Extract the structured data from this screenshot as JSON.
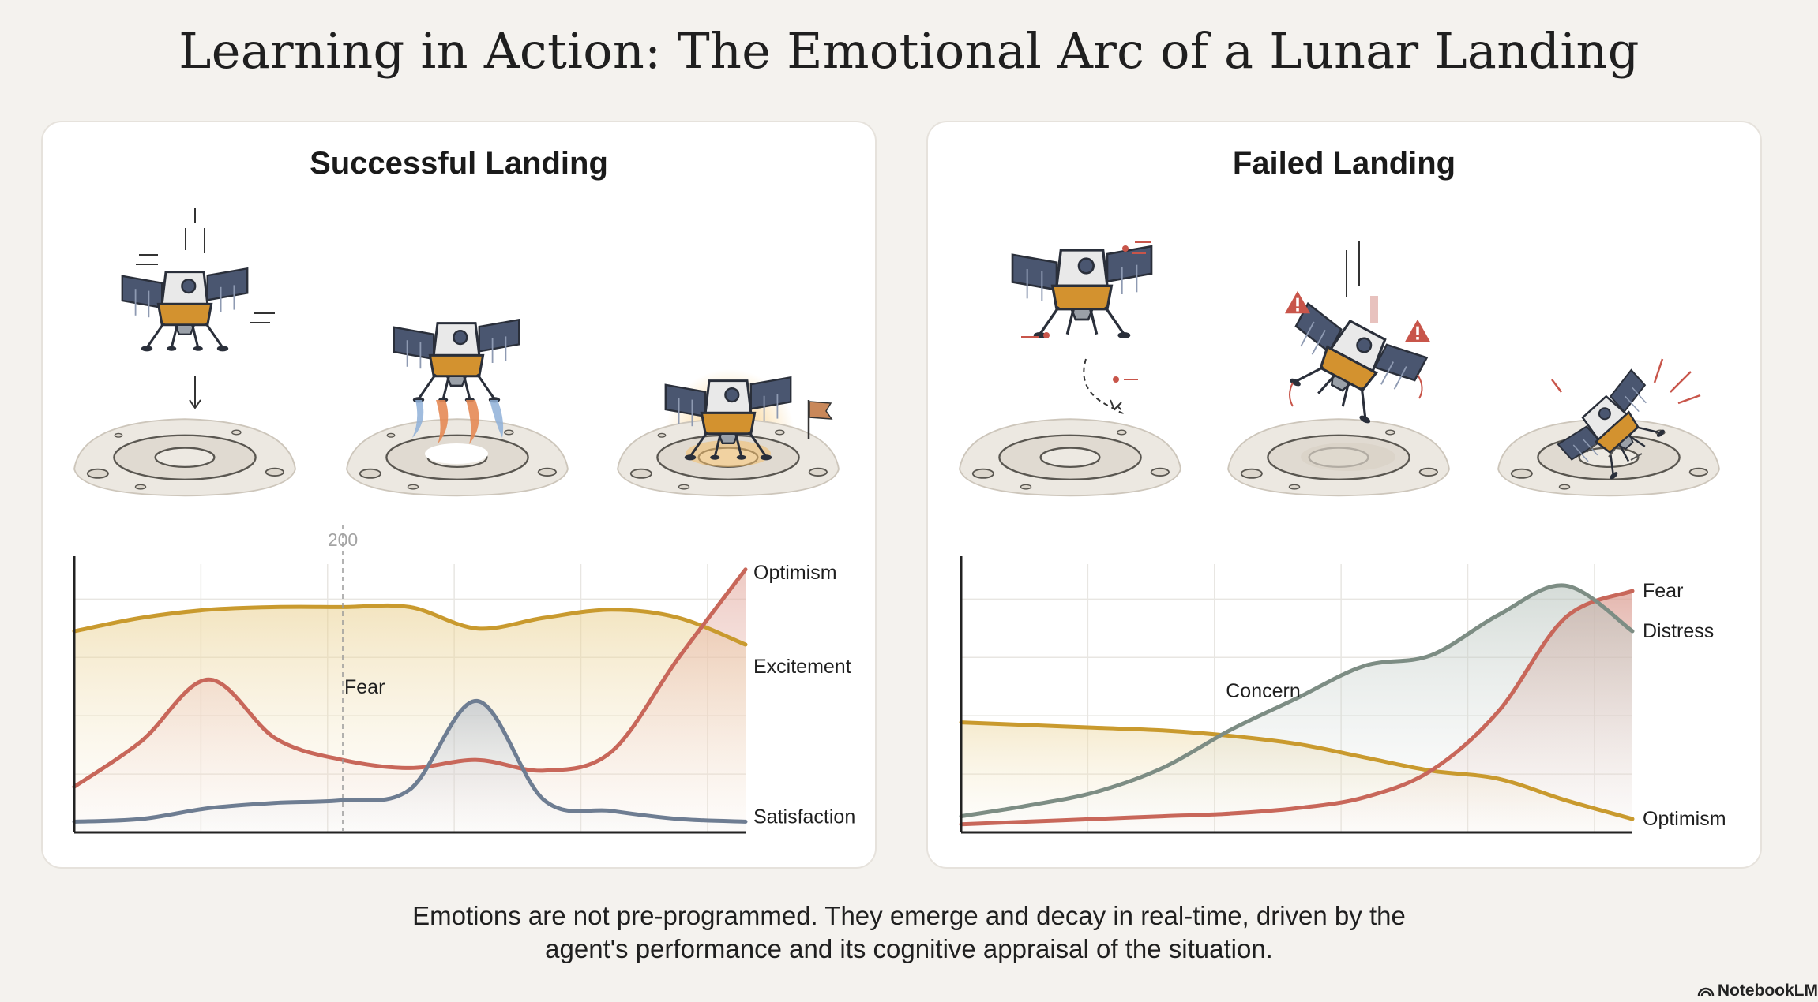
{
  "title": "Learning in Action: The Emotional Arc of a Lunar Landing",
  "caption": {
    "line1": "Emotions are not pre-programmed. They emerge and decay in real-time, driven by the",
    "line2": "agent's performance and its cognitive appraisal of the situation."
  },
  "brand": "NotebookLM",
  "icons": [
    "lunar-lander-icon",
    "lunar-crater-icon",
    "warning-icon",
    "flag-icon",
    "thruster-flame-icon"
  ],
  "colors": {
    "gold": "#c99a2e",
    "red": "#c8675a",
    "blue_gray": "#6e7d92",
    "green_gray": "#7d8d84"
  },
  "chart_data": [
    {
      "type": "line",
      "title": "Successful Landing",
      "x": [
        0,
        50,
        100,
        150,
        200,
        250,
        300,
        350,
        400,
        450,
        500
      ],
      "annotations": [
        {
          "text": "200",
          "x": 200
        },
        {
          "text": "Fear",
          "x": 200
        }
      ],
      "ylim": [
        0,
        100
      ],
      "grid": true,
      "series": [
        {
          "name": "Excitement",
          "color": "#c99a2e",
          "values": [
            75,
            80,
            83,
            84,
            84,
            84,
            76,
            80,
            83,
            80,
            70
          ]
        },
        {
          "name": "Optimism",
          "color": "#c8675a",
          "values": [
            17,
            34,
            57,
            35,
            27,
            24,
            27,
            23,
            30,
            65,
            98
          ]
        },
        {
          "name": "Satisfaction",
          "color": "#6e7d92",
          "values": [
            4,
            5,
            9,
            11,
            12,
            16,
            49,
            12,
            8,
            5,
            4
          ]
        }
      ]
    },
    {
      "type": "line",
      "title": "Failed Landing",
      "x": [
        0,
        50,
        100,
        150,
        200,
        250,
        300,
        350,
        400,
        450,
        500
      ],
      "annotations": [
        {
          "text": "Concern",
          "x": 225
        }
      ],
      "ylim": [
        0,
        100
      ],
      "grid": true,
      "series": [
        {
          "name": "Optimism",
          "color": "#c99a2e",
          "values": [
            41,
            40,
            39,
            38,
            36,
            33,
            28,
            23,
            20,
            12,
            5
          ]
        },
        {
          "name": "Fear",
          "color": "#c8675a",
          "values": [
            3,
            4,
            5,
            6,
            7,
            9,
            13,
            23,
            45,
            80,
            90
          ]
        },
        {
          "name": "Distress",
          "color": "#7d8d84",
          "values": [
            6,
            10,
            15,
            24,
            38,
            50,
            62,
            66,
            81,
            92,
            75
          ]
        }
      ]
    }
  ]
}
